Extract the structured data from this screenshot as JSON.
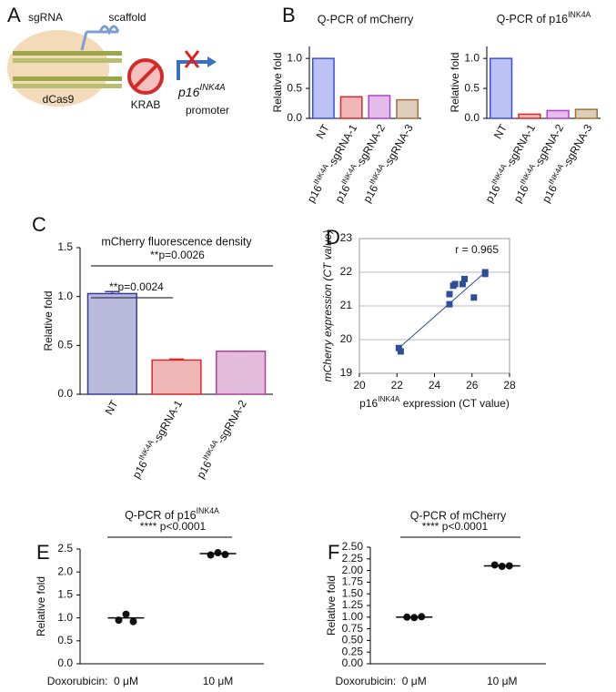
{
  "panel_labels": [
    "A",
    "B",
    "C",
    "D",
    "E",
    "F"
  ],
  "diagram": {
    "sgrna": "sgRNA",
    "scaffold": "scaffold",
    "dcas9": "dCas9",
    "krab": "KRAB",
    "gene": "p16INK4A",
    "promoter": "promoter"
  },
  "chart_data": [
    {
      "type": "bar",
      "title": "Q-PCR of mCherry",
      "ylabel": "Relative fold",
      "categories": [
        "NT",
        "p16INK4A-sgRNA-1",
        "p16INK4A-sgRNA-2",
        "p16INK4A-sgRNA-3"
      ],
      "values": [
        1.0,
        0.36,
        0.38,
        0.31
      ],
      "colors": [
        "#3c4fe0",
        "#d42a2a",
        "#b040c8",
        "#a0703a"
      ],
      "ylim": [
        0,
        1.2
      ],
      "yticks": [
        {
          "value": 0,
          "label": "0.0"
        },
        {
          "value": 0.5,
          "label": "0.5"
        },
        {
          "value": 1,
          "label": "1.0"
        }
      ]
    },
    {
      "type": "bar",
      "title": "Q-PCR of p16INK4A",
      "ylabel": "Relative fold",
      "categories": [
        "NT",
        "p16INK4A-sgRNA-1",
        "p16INK4A-sgRNA-2",
        "p16INK4A-sgRNA-3"
      ],
      "values": [
        1.0,
        0.07,
        0.13,
        0.15
      ],
      "colors": [
        "#3c4fe0",
        "#d42a2a",
        "#b040c8",
        "#a0703a"
      ],
      "ylim": [
        0,
        1.2
      ],
      "yticks": [
        {
          "value": 0,
          "label": "0.0"
        },
        {
          "value": 0.5,
          "label": "0.5"
        },
        {
          "value": 1,
          "label": "1.0"
        }
      ]
    },
    {
      "type": "bar",
      "title": "mCherry fluorescence density",
      "ylabel": "Relative fold",
      "categories": [
        "NT",
        "p16INK4A-sgRNA-1",
        "p16INK4A-sgRNA-2"
      ],
      "values": [
        1.03,
        0.35,
        0.44
      ],
      "errors": [
        0.02,
        0.01,
        0.0
      ],
      "colors": [
        "#3a3a9a",
        "#d42a2a",
        "#b040a0"
      ],
      "ylim": [
        0,
        1.5
      ],
      "yticks": [
        {
          "value": 0,
          "label": "0.0"
        },
        {
          "value": 0.5,
          "label": "0.5"
        },
        {
          "value": 1,
          "label": "1.0"
        },
        {
          "value": 1.5,
          "label": "1.5"
        }
      ],
      "annotations": [
        "**p=0.0026",
        "**p=0.0024"
      ]
    },
    {
      "type": "scatter",
      "xlabel": "p16INK4A expression (CT value)",
      "ylabel": "mCherry expression (CT value)",
      "x": [
        22.1,
        22.2,
        24.8,
        24.8,
        25.0,
        25.1,
        25.5,
        25.6,
        26.1,
        26.7,
        26.7
      ],
      "values": [
        19.75,
        19.65,
        21.05,
        21.35,
        21.6,
        21.65,
        21.65,
        21.8,
        21.25,
        21.95,
        22.0
      ],
      "color": "#2d4f9a",
      "fit": {
        "x": [
          22.0,
          26.8
        ],
        "values": [
          19.7,
          22.05
        ]
      },
      "xlim": [
        20,
        28
      ],
      "xticks": [
        20,
        22,
        24,
        26,
        28
      ],
      "ylim": [
        19,
        23
      ],
      "yticks": [
        19,
        20,
        21,
        22,
        23
      ],
      "grid": true,
      "annotations": [
        "r = 0.965"
      ]
    },
    {
      "type": "dot",
      "title": "Q-PCR of p16INK4A",
      "ylabel": "Relative fold",
      "x_prefix": "Doxorubicin:",
      "categories": [
        "0 μM",
        "10 μM"
      ],
      "groups": [
        [
          0.95,
          1.08,
          0.92
        ],
        [
          2.37,
          2.42,
          2.38
        ]
      ],
      "means": [
        1.0,
        2.4
      ],
      "ylim": [
        0,
        2.5
      ],
      "yticks": [
        {
          "value": 0,
          "label": "0.0"
        },
        {
          "value": 0.5,
          "label": "0.5"
        },
        {
          "value": 1,
          "label": "1.0"
        },
        {
          "value": 1.5,
          "label": "1.5"
        },
        {
          "value": 2,
          "label": "2.0"
        },
        {
          "value": 2.5,
          "label": "2.5"
        }
      ],
      "annotations": [
        "**** p<0.0001"
      ]
    },
    {
      "type": "dot",
      "title": "Q-PCR of mCherry",
      "ylabel": "Relative fold",
      "x_prefix": "Doxorubicin:",
      "categories": [
        "0 μM",
        "10 μM"
      ],
      "groups": [
        [
          1.0,
          0.99,
          1.01
        ],
        [
          2.12,
          2.09,
          2.1
        ]
      ],
      "means": [
        1.0,
        2.1
      ],
      "ylim": [
        0,
        2.5
      ],
      "yticks": [
        {
          "value": 0,
          "label": "0.00"
        },
        {
          "value": 0.25,
          "label": "0.25"
        },
        {
          "value": 0.5,
          "label": "0.50"
        },
        {
          "value": 0.75,
          "label": "0.75"
        },
        {
          "value": 1,
          "label": "1.00"
        },
        {
          "value": 1.25,
          "label": "1.25"
        },
        {
          "value": 1.5,
          "label": "1.50"
        },
        {
          "value": 1.75,
          "label": "1.75"
        },
        {
          "value": 2,
          "label": "2.00"
        },
        {
          "value": 2.25,
          "label": "2.25"
        },
        {
          "value": 2.5,
          "label": "2.50"
        }
      ],
      "annotations": [
        "**** p<0.0001"
      ]
    }
  ]
}
